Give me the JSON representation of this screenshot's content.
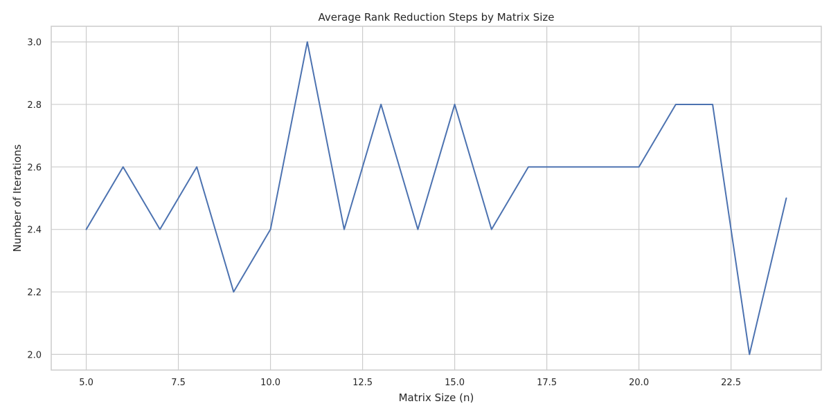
{
  "chart_data": {
    "type": "line",
    "title": "Average Rank Reduction Steps by Matrix Size",
    "xlabel": "Matrix Size (n)",
    "ylabel": "Number of Iterations",
    "x": [
      5,
      6,
      7,
      8,
      9,
      10,
      11,
      12,
      13,
      14,
      15,
      16,
      17,
      18,
      19,
      20,
      21,
      22,
      23,
      24
    ],
    "series": [
      {
        "values": [
          2.4,
          2.6,
          2.4,
          2.6,
          2.2,
          2.4,
          3.0,
          2.4,
          2.8,
          2.4,
          2.8,
          2.4,
          2.6,
          2.6,
          2.6,
          2.6,
          2.8,
          2.8,
          2.0,
          2.5
        ],
        "color": "#4c72b0"
      }
    ],
    "xlim": [
      4.05,
      24.95
    ],
    "ylim": [
      1.95,
      3.05
    ],
    "xticks": [
      "5.0",
      "7.5",
      "10.0",
      "12.5",
      "15.0",
      "17.5",
      "20.0",
      "22.5"
    ],
    "yticks": [
      "2.0",
      "2.2",
      "2.4",
      "2.6",
      "2.8",
      "3.0"
    ],
    "grid": true,
    "legend": "none"
  }
}
